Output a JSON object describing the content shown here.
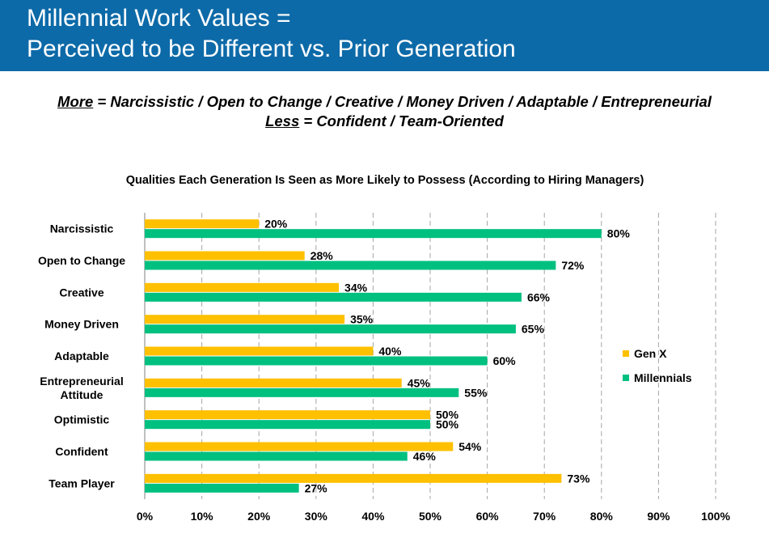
{
  "header": {
    "title_line1": "Millennial Work Values =",
    "title_line2": "Perceived to be Different vs. Prior Generation"
  },
  "subtitle": {
    "more_key": "More",
    "more_text": " = Narcissistic / Open to Change / Creative / Money Driven / Adaptable / Entrepreneurial",
    "less_key": "Less",
    "less_text": " = Confident / Team-Oriented"
  },
  "colors": {
    "gen_x": "#ffc000",
    "millennials": "#00c07f",
    "header_bg": "#0d6aa8",
    "grid": "#a6a6a6"
  },
  "chart_data": {
    "type": "bar",
    "orientation": "horizontal",
    "title": "Qualities Each Generation Is Seen as More Likely to Possess (According to Hiring Managers)",
    "categories": [
      "Narcissistic",
      "Open to Change",
      "Creative",
      "Money Driven",
      "Adaptable",
      "Entrepreneurial Attitude",
      "Optimistic",
      "Confident",
      "Team Player"
    ],
    "category_lines": [
      [
        "Narcissistic"
      ],
      [
        "Open to Change"
      ],
      [
        "Creative"
      ],
      [
        "Money Driven"
      ],
      [
        "Adaptable"
      ],
      [
        "Entrepreneurial",
        "Attitude"
      ],
      [
        "Optimistic"
      ],
      [
        "Confident"
      ],
      [
        "Team Player"
      ]
    ],
    "series": [
      {
        "name": "Gen X",
        "values": [
          20,
          28,
          34,
          35,
          40,
          45,
          50,
          54,
          73
        ]
      },
      {
        "name": "Millennials",
        "values": [
          80,
          72,
          66,
          65,
          60,
          55,
          50,
          46,
          27
        ]
      }
    ],
    "value_suffix": "%",
    "xlim": [
      0,
      100
    ],
    "xticks": [
      "0%",
      "10%",
      "20%",
      "30%",
      "40%",
      "50%",
      "60%",
      "70%",
      "80%",
      "90%",
      "100%"
    ],
    "grid": true,
    "grid_style": "dashed vertical",
    "legend_position": "right"
  }
}
